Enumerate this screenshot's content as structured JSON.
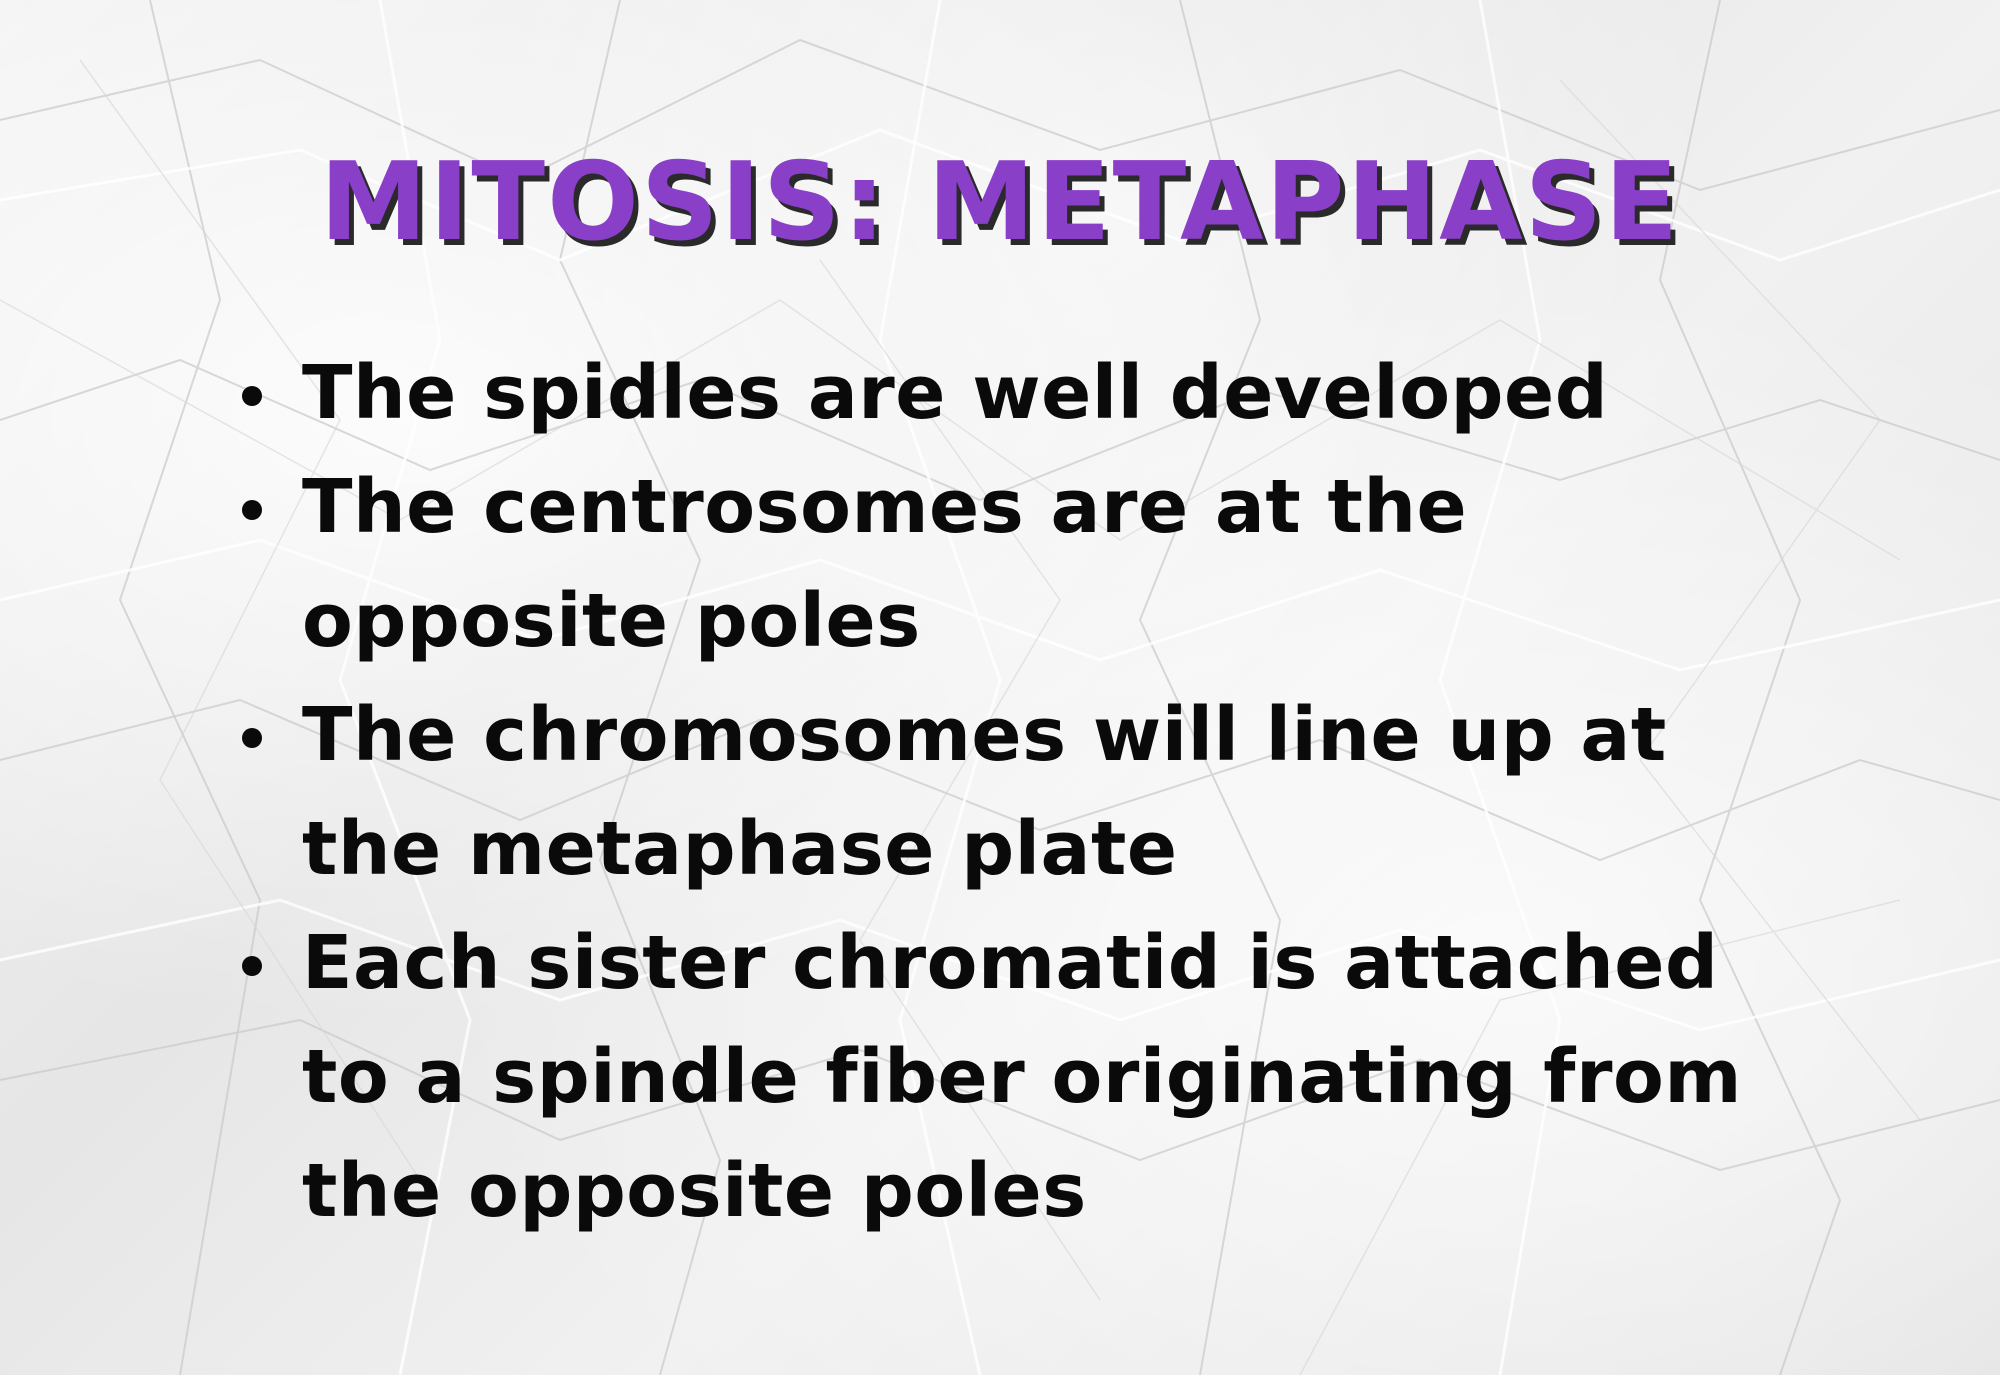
{
  "slide": {
    "title": "MITOSIS: METAPHASE",
    "bullets": [
      "The spidles are well developed",
      "The centrosomes are at the opposite poles",
      "The chromosomes will line up at the metaphase plate",
      "Each sister chromatid is attached to a spindle fiber originating from the opposite poles"
    ]
  },
  "colors": {
    "title": "#8a3fc8",
    "title_shadow": "#2a2a2a",
    "text": "#0a0a0a",
    "background": "#ececec"
  }
}
